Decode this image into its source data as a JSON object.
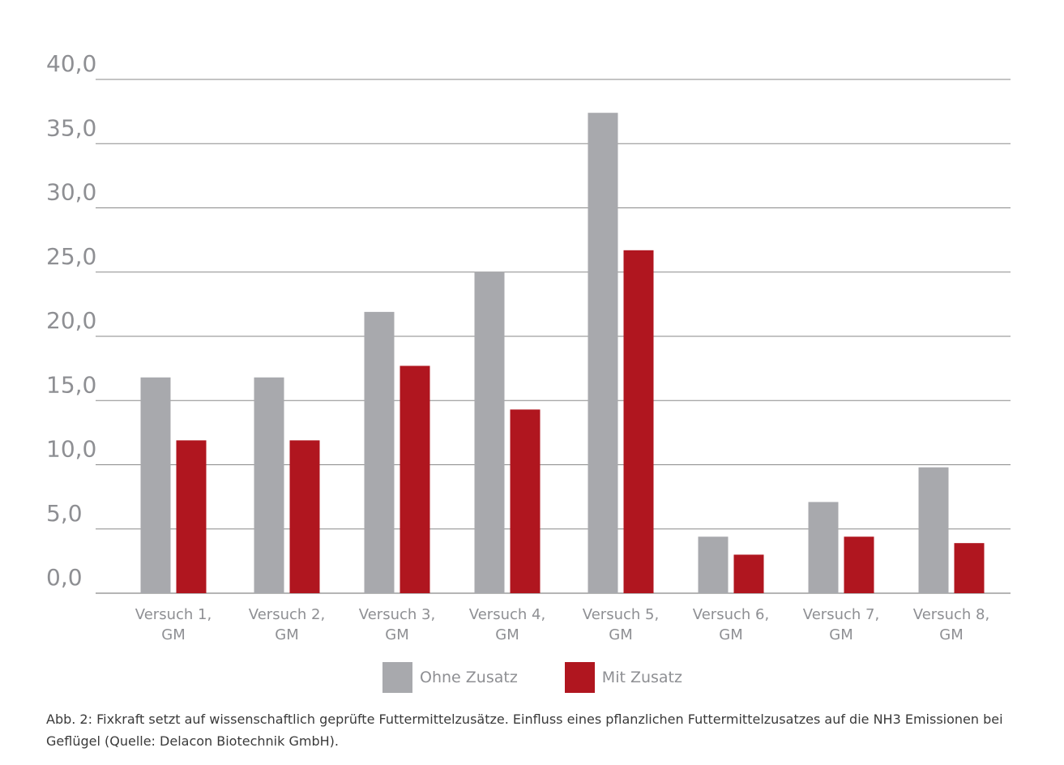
{
  "chart_data": {
    "type": "bar",
    "categories": [
      [
        "Versuch 1,",
        "GM"
      ],
      [
        "Versuch 2,",
        "GM"
      ],
      [
        "Versuch 3,",
        "GM"
      ],
      [
        "Versuch 4,",
        "GM"
      ],
      [
        "Versuch 5,",
        "GM"
      ],
      [
        "Versuch 6,",
        "GM"
      ],
      [
        "Versuch 7,",
        "GM"
      ],
      [
        "Versuch 8,",
        "GM"
      ]
    ],
    "series": [
      {
        "name": "Ohne Zusatz",
        "color": "#a8a9ad",
        "values": [
          16.8,
          16.8,
          21.9,
          25.0,
          37.4,
          4.4,
          7.1,
          9.8
        ]
      },
      {
        "name": "Mit Zusatz",
        "color": "#b0161f",
        "values": [
          11.9,
          11.9,
          17.7,
          14.3,
          26.7,
          3.0,
          4.4,
          3.9
        ]
      }
    ],
    "yticks": [
      "0,0",
      "5,0",
      "10,0",
      "15,0",
      "20,0",
      "25,0",
      "30,0",
      "35,0",
      "40,0"
    ],
    "ylim": [
      0,
      40
    ],
    "grid": true,
    "legend_position": "bottom",
    "xlabel": "",
    "ylabel": ""
  },
  "caption": "Abb. 2: Fixkraft setzt auf wissenschaftlich geprüfte Futtermittelzusätze. Einfluss eines pflanzlichen Futtermittelzusatzes auf die NH3 Emissionen bei Geflügel (Quelle: Delacon Biotechnik GmbH)."
}
